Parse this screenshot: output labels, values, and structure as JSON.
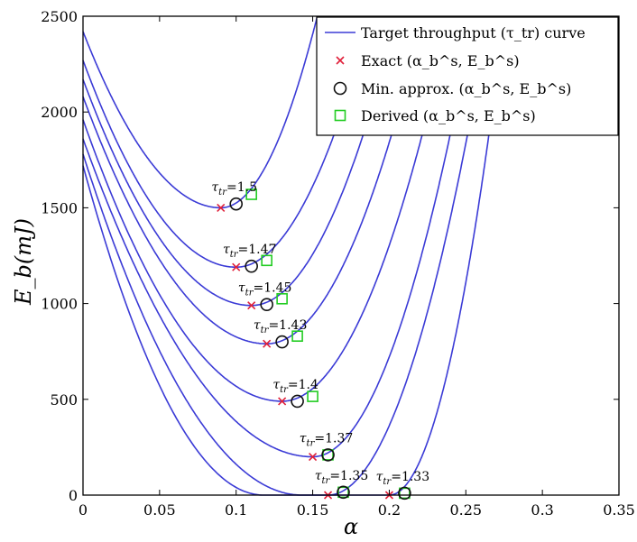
{
  "chart_data": {
    "type": "line",
    "xlabel": "α",
    "ylabel": "E_b(mJ)",
    "xlim": [
      0,
      0.35
    ],
    "ylim": [
      0,
      2500
    ],
    "x_ticks": [
      "0",
      "0.05",
      "0.1",
      "0.15",
      "0.2",
      "0.25",
      "0.3",
      "0.35"
    ],
    "y_ticks": [
      "0",
      "500",
      "1000",
      "1500",
      "2000",
      "2500"
    ],
    "grid": false,
    "legend_position": "top-right",
    "legend": [
      {
        "marker": "line",
        "label": "Target throughput (τ_tr) curve"
      },
      {
        "marker": "x",
        "label": "Exact (α_b^s, E_b^s)"
      },
      {
        "marker": "circle",
        "label": "Min. approx. (α_b^s, E_b^s)"
      },
      {
        "marker": "square",
        "label": "Derived (α_b^s, E_b^s)"
      }
    ],
    "colors": {
      "curve": "#3b3bd6",
      "exact": "#e0203a",
      "min": "#111111",
      "derived": "#22cc22"
    },
    "series": [
      {
        "annotation": "τ_tr=1.5",
        "y_at_zero": 2420,
        "exact": [
          0.09,
          1500
        ],
        "min_approx": [
          0.1,
          1520
        ],
        "derived": [
          0.11,
          1570
        ],
        "x_at_top": 0.153
      },
      {
        "annotation": "τ_tr=1.47",
        "y_at_zero": 2270,
        "exact": [
          0.1,
          1190
        ],
        "min_approx": [
          0.11,
          1195
        ],
        "derived": [
          0.12,
          1225
        ],
        "x_at_top": 0.188
      },
      {
        "annotation": "τ_tr=1.45",
        "y_at_zero": 2170,
        "exact": [
          0.11,
          990
        ],
        "min_approx": [
          0.12,
          995
        ],
        "derived": [
          0.13,
          1025
        ],
        "x_at_top": 0.205
      },
      {
        "annotation": "τ_tr=1.43",
        "y_at_zero": 2080,
        "exact": [
          0.12,
          790
        ],
        "min_approx": [
          0.13,
          800
        ],
        "derived": [
          0.14,
          830
        ],
        "x_at_top": 0.222
      },
      {
        "annotation": "τ_tr=1.4",
        "y_at_zero": 1960,
        "exact": [
          0.13,
          490
        ],
        "min_approx": [
          0.14,
          490
        ],
        "derived": [
          0.15,
          515
        ],
        "x_at_top": 0.24
      },
      {
        "annotation": "τ_tr=1.37",
        "y_at_zero": 1860,
        "exact": [
          0.15,
          200
        ],
        "min_approx": [
          0.16,
          210
        ],
        "derived": [
          0.16,
          210
        ],
        "x_at_top": 0.255
      },
      {
        "annotation": "τ_tr=1.35",
        "y_at_zero": 1780,
        "exact": [
          0.16,
          0
        ],
        "min_approx": [
          0.17,
          15
        ],
        "derived": [
          0.17,
          15
        ],
        "x_at_top": 0.265,
        "flat_from": 0.143
      },
      {
        "annotation": "τ_tr=1.33",
        "y_at_zero": 1720,
        "exact": [
          0.2,
          0
        ],
        "min_approx": [
          0.21,
          10
        ],
        "derived": [
          0.21,
          10
        ],
        "x_at_top": 0.275,
        "flat_from": 0.118
      }
    ]
  }
}
